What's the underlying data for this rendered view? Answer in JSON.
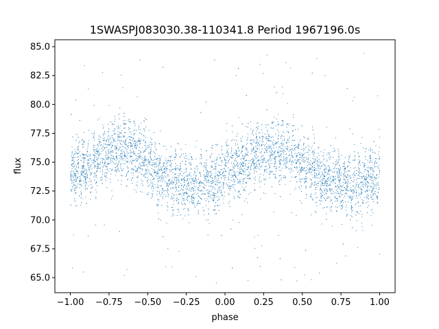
{
  "chart_data": {
    "type": "scatter",
    "title": "1SWASPJ083030.38-110341.8 Period 1967196.0s",
    "xlabel": "phase",
    "ylabel": "flux",
    "xlim": [
      -1.1,
      1.1
    ],
    "ylim": [
      63.7,
      85.6
    ],
    "xticks": [
      -1.0,
      -0.75,
      -0.5,
      -0.25,
      0.0,
      0.25,
      0.5,
      0.75,
      1.0
    ],
    "xtick_labels": [
      "−1.00",
      "−0.75",
      "−0.50",
      "−0.25",
      "0.00",
      "0.25",
      "0.50",
      "0.75",
      "1.00"
    ],
    "yticks": [
      65.0,
      67.5,
      70.0,
      72.5,
      75.0,
      77.5,
      80.0,
      82.5,
      85.0
    ],
    "ytick_labels": [
      "65.0",
      "67.5",
      "70.0",
      "72.5",
      "75.0",
      "77.5",
      "80.0",
      "82.5",
      "85.0"
    ],
    "grid": false,
    "marker_color": "#1f77b4",
    "series": [
      {
        "phase_range": [
          -1.0,
          1.0
        ],
        "trend": {
          "phase": [
            -1.0,
            -0.9,
            -0.8,
            -0.7,
            -0.6,
            -0.5,
            -0.4,
            -0.3,
            -0.2,
            -0.1,
            0.0,
            0.1,
            0.2,
            0.3,
            0.4,
            0.5,
            0.6,
            0.7,
            0.8,
            0.9,
            1.0
          ],
          "flux": [
            74.0,
            74.5,
            75.5,
            76.3,
            76.0,
            74.8,
            73.8,
            73.3,
            73.0,
            73.3,
            74.0,
            74.5,
            75.5,
            76.3,
            76.0,
            74.8,
            73.8,
            73.3,
            73.0,
            73.3,
            74.0
          ]
        },
        "scatter_sd": 1.2,
        "outlier_range": [
          64.5,
          84.5
        ]
      }
    ]
  }
}
